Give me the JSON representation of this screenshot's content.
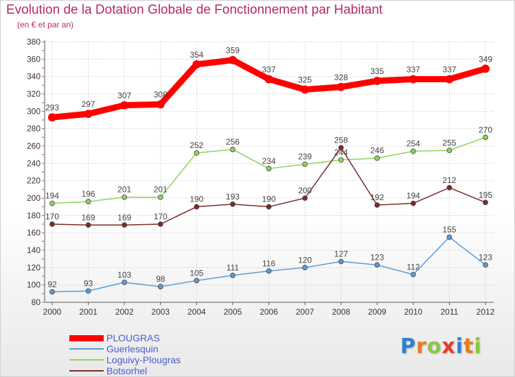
{
  "header": {
    "title": "Evolution de la Dotation Globale de Fonctionnement par Habitant",
    "subtitle": "(en € et par an)"
  },
  "logo": {
    "letters": [
      "P",
      "r",
      "o",
      "x",
      "i",
      "t",
      "i"
    ],
    "colors": [
      "#2f7fd3",
      "#e87b1e",
      "#8cc63f",
      "#e23c2a",
      "#2f7fd3",
      "#e87b1e",
      "#8cc63f"
    ]
  },
  "chart_data": {
    "type": "line",
    "x": [
      "2000",
      "2001",
      "2002",
      "2003",
      "2004",
      "2005",
      "2006",
      "2007",
      "2008",
      "2009",
      "2010",
      "2011",
      "2012"
    ],
    "ylim": [
      80,
      380
    ],
    "yticks": [
      80,
      100,
      120,
      140,
      160,
      180,
      200,
      220,
      240,
      260,
      280,
      300,
      320,
      340,
      360,
      380
    ],
    "grid": true,
    "legend_position": "bottom-left",
    "series": [
      {
        "name": "PLOUGRAS",
        "color": "#ff0000",
        "values": [
          293,
          297,
          307,
          308,
          354,
          359,
          337,
          325,
          328,
          335,
          337,
          337,
          349
        ]
      },
      {
        "name": "Guerlesquin",
        "color": "#5b9bd5",
        "values": [
          92,
          93,
          103,
          98,
          105,
          111,
          116,
          120,
          127,
          123,
          112,
          155,
          123
        ]
      },
      {
        "name": "Loguivy-Plougras",
        "color": "#8fd35b",
        "values": [
          194,
          196,
          201,
          201,
          252,
          256,
          234,
          239,
          244,
          246,
          254,
          255,
          270
        ]
      },
      {
        "name": "Botsorhel",
        "color": "#7a2a2a",
        "values": [
          170,
          169,
          169,
          170,
          190,
          193,
          190,
          200,
          258,
          192,
          194,
          212,
          195
        ]
      }
    ]
  }
}
